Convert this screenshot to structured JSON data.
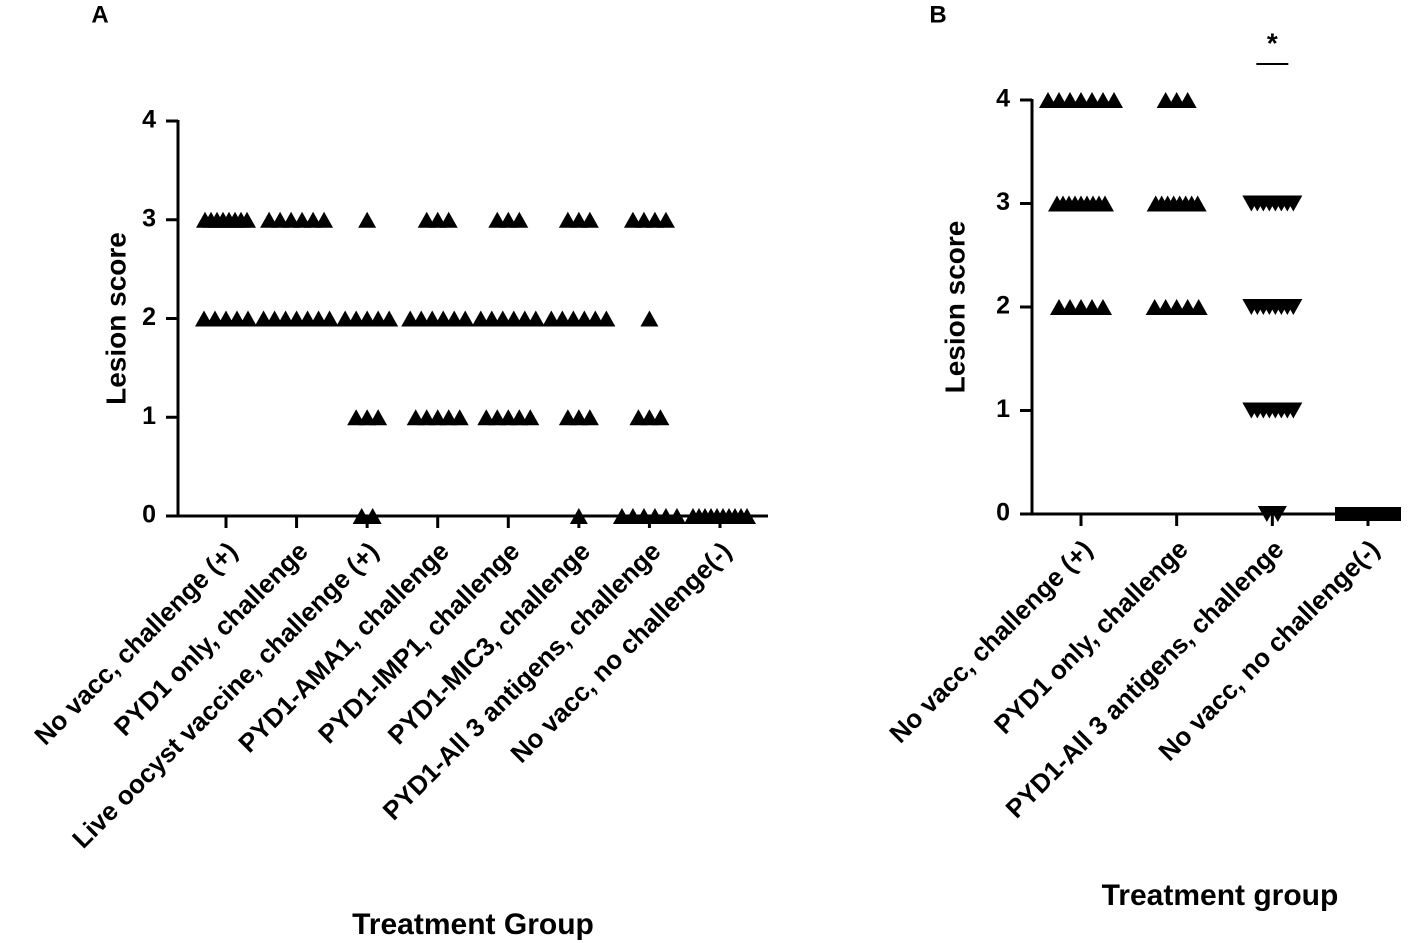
{
  "chart_data": [
    {
      "type": "strip",
      "panel": "A",
      "ylabel": "Lesion score",
      "xlabel": "Treatment Group",
      "categories": [
        "No vacc, challenge (+)",
        "PYD1 only, challenge",
        "Live oocyst vaccine, challenge (+)",
        "PYD1-AMA1, challenge",
        "PYD1-IMP1, challenge",
        "PYD1-MIC3, challenge",
        "PYD1-All 3 antigens, challenge",
        "No vacc, no challenge(-)"
      ],
      "markers": [
        "triangle-up",
        "triangle-up",
        "triangle-up",
        "triangle-up",
        "triangle-up",
        "triangle-up",
        "triangle-up",
        "triangle-up"
      ],
      "values": [
        [
          3,
          3,
          3,
          3,
          3,
          3,
          3,
          3,
          2,
          2,
          2,
          2,
          2
        ],
        [
          3,
          3,
          3,
          3,
          3,
          3,
          2,
          2,
          2,
          2,
          2,
          2,
          2
        ],
        [
          3,
          2,
          2,
          2,
          2,
          2,
          1,
          1,
          1,
          0,
          0
        ],
        [
          3,
          3,
          3,
          2,
          2,
          2,
          2,
          2,
          2,
          1,
          1,
          1,
          1,
          1
        ],
        [
          3,
          3,
          3,
          2,
          2,
          2,
          2,
          2,
          2,
          1,
          1,
          1,
          1,
          1
        ],
        [
          3,
          3,
          3,
          2,
          2,
          2,
          2,
          2,
          2,
          1,
          1,
          1,
          0
        ],
        [
          3,
          3,
          3,
          3,
          2,
          1,
          1,
          1,
          0,
          0,
          0,
          0,
          0,
          0
        ],
        [
          0,
          0,
          0,
          0,
          0,
          0,
          0,
          0,
          0,
          0
        ]
      ],
      "color": "#000000",
      "ylim": [
        0,
        4
      ],
      "yticks": [
        0,
        1,
        2,
        3,
        4
      ]
    },
    {
      "type": "strip",
      "panel": "B",
      "ylabel": "Lesion score",
      "xlabel": "Treatment group",
      "annotation": "*",
      "categories": [
        "No vacc, challenge (+)",
        "PYD1 only, challenge",
        "PYD1-All 3 antigens, challenge",
        "No vacc, no challenge(-)"
      ],
      "markers": [
        "triangle-up",
        "triangle-up",
        "triangle-down",
        "square"
      ],
      "values": [
        [
          4,
          4,
          4,
          4,
          4,
          4,
          4,
          3,
          3,
          3,
          3,
          3,
          3,
          3,
          3,
          3,
          2,
          2,
          2,
          2,
          2
        ],
        [
          4,
          4,
          4,
          3,
          3,
          3,
          3,
          3,
          3,
          3,
          3,
          2,
          2,
          2,
          2,
          2
        ],
        [
          3,
          3,
          3,
          3,
          3,
          3,
          3,
          3,
          2,
          2,
          2,
          2,
          2,
          2,
          2,
          2,
          1,
          1,
          1,
          1,
          1,
          1,
          1,
          1,
          0,
          0
        ],
        [
          0,
          0,
          0,
          0,
          0,
          0,
          0,
          0,
          0,
          0
        ]
      ],
      "color": "#000000",
      "ylim": [
        0,
        4
      ],
      "yticks": [
        0,
        1,
        2,
        3,
        4
      ]
    }
  ]
}
